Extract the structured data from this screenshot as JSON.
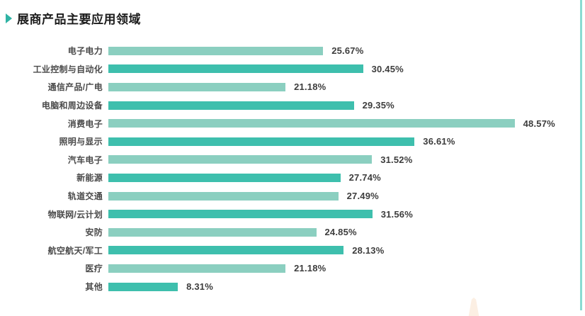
{
  "header": {
    "title": "展商产品主要应用领域",
    "marker_icon": "right-triangle"
  },
  "chart_data": {
    "type": "bar",
    "orientation": "horizontal",
    "title": "展商产品主要应用领域",
    "xlabel": "",
    "ylabel": "",
    "xlim": [
      0,
      52.5
    ],
    "grid": false,
    "legend": "none",
    "value_suffix": "%",
    "categories": [
      "电子电力",
      "工业控制与自动化",
      "通信产品/广电",
      "电脑和周边设备",
      "消费电子",
      "照明与显示",
      "汽车电子",
      "新能源",
      "轨道交通",
      "物联网/云计划",
      "安防",
      "航空航天/军工",
      "医疗",
      "其他"
    ],
    "values": [
      25.67,
      30.45,
      21.18,
      29.35,
      48.57,
      36.61,
      31.52,
      27.74,
      27.49,
      31.56,
      24.85,
      28.13,
      21.18,
      8.31
    ],
    "value_labels": [
      "25.67%",
      "30.45%",
      "21.18%",
      "29.35%",
      "48.57%",
      "36.61%",
      "31.52%",
      "27.74%",
      "27.49%",
      "31.56%",
      "24.85%",
      "28.13%",
      "21.18%",
      "8.31%"
    ]
  },
  "colors": {
    "bar_light": "#8bcfc0",
    "bar_dark": "#3ebfad",
    "accent_triangle": "#2fb3a4",
    "title_text": "#1c1c1c",
    "label_text": "#4a4a4a",
    "value_text": "#3d3d3d",
    "right_border": "#8adbd2",
    "watermark": "#fcefe3"
  }
}
